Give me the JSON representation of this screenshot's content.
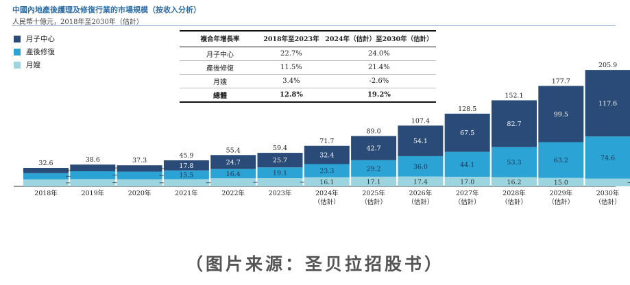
{
  "title": "中國內地產後護理及修復行業的市場規模（按收入分析）",
  "subtitle": "人民幣十億元，2018年至2030年（估計）",
  "source": "（图片来源：圣贝拉招股书）",
  "colors": {
    "yuezizhongxin": "#2a4b77",
    "chanhouxiufu": "#2ba3d4",
    "yuesao": "#9cd5df",
    "title": "#2f6fa8"
  },
  "legend": [
    {
      "label": "月子中心",
      "color": "#2a4b77"
    },
    {
      "label": "產後修復",
      "color": "#2ba3d4"
    },
    {
      "label": "月嫂",
      "color": "#9cd5df"
    }
  ],
  "growth_table": {
    "headers": [
      "複合年增長率",
      "2018年至2023年",
      "2024年（估計）至2030年（估計）"
    ],
    "rows": [
      [
        "月子中心",
        "22.7%",
        "24.0%"
      ],
      [
        "產後修復",
        "11.5%",
        "21.4%"
      ],
      [
        "月嫂",
        "3.4%",
        "-2.6%"
      ]
    ],
    "total": [
      "總體",
      "12.8%",
      "19.2%"
    ]
  },
  "chart_data": {
    "type": "bar",
    "stacked": true,
    "categories": [
      "2018年",
      "2019年",
      "2020年",
      "2021年",
      "2022年",
      "2023年",
      "2024年",
      "2025年",
      "2026年",
      "2027年",
      "2028年",
      "2029年",
      "2030年"
    ],
    "category_sublabels": [
      "",
      "",
      "",
      "",
      "",
      "",
      "（估計）",
      "（估計）",
      "（估計）",
      "（估計）",
      "（估計）",
      "（估計）",
      "（估計）"
    ],
    "series": [
      {
        "name": "月嫂",
        "values": [
          12.3,
          12.9,
          12.5,
          12.7,
          14.3,
          14.5,
          16.1,
          17.1,
          17.4,
          17.0,
          16.2,
          15.0,
          13.7
        ]
      },
      {
        "name": "產後修復",
        "values": [
          11.1,
          13.8,
          13.5,
          15.5,
          16.4,
          19.1,
          23.3,
          29.2,
          36.0,
          44.1,
          53.3,
          63.2,
          74.6
        ]
      },
      {
        "name": "月子中心",
        "values": [
          9.3,
          11.8,
          11.3,
          17.8,
          24.7,
          25.7,
          32.4,
          42.7,
          54.1,
          67.5,
          82.7,
          99.5,
          117.6
        ]
      }
    ],
    "totals": [
      32.6,
      38.6,
      37.3,
      45.9,
      55.4,
      59.4,
      71.7,
      89.0,
      107.4,
      128.5,
      152.1,
      177.7,
      205.9
    ],
    "title": "中國內地產後護理及修復行業的市場規模（按收入分析）",
    "ylabel": "人民幣十億元",
    "ylim": [
      0,
      210
    ],
    "grid": false,
    "legend_position": "top-left"
  }
}
